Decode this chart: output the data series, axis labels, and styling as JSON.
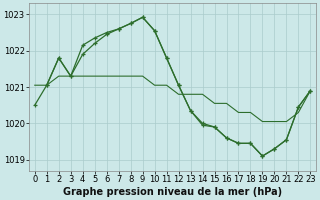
{
  "xlabel": "Graphe pression niveau de la mer (hPa)",
  "bg_color": "#cce8e8",
  "grid_color": "#aacccc",
  "line_color1": "#2d6e2d",
  "line_color2": "#2d6e2d",
  "line_color3": "#2d6e2d",
  "ylim": [
    1018.7,
    1023.3
  ],
  "xlim": [
    -0.5,
    23.5
  ],
  "yticks": [
    1019,
    1020,
    1021,
    1022,
    1023
  ],
  "xticks": [
    0,
    1,
    2,
    3,
    4,
    5,
    6,
    7,
    8,
    9,
    10,
    11,
    12,
    13,
    14,
    15,
    16,
    17,
    18,
    19,
    20,
    21,
    22,
    23
  ],
  "series1_x": [
    0,
    1,
    2,
    3,
    4,
    5,
    6,
    7,
    8,
    9,
    10,
    11,
    12,
    13,
    14,
    15,
    16,
    17,
    18,
    19,
    20,
    21,
    22,
    23
  ],
  "series1_y": [
    1020.5,
    1021.05,
    1021.8,
    1021.3,
    1021.9,
    1022.2,
    1022.45,
    1022.6,
    1022.75,
    1022.92,
    1022.55,
    1021.8,
    1021.05,
    1020.35,
    1020.0,
    1019.9,
    1019.6,
    1019.45,
    1019.45,
    1019.1,
    1019.3,
    1019.55,
    1020.45,
    1020.9
  ],
  "series2_x": [
    1,
    2,
    3,
    4,
    5,
    6,
    7,
    8,
    9,
    10,
    11,
    12,
    13,
    14,
    15,
    16,
    17,
    18,
    19,
    20,
    21,
    22,
    23
  ],
  "series2_y": [
    1021.05,
    1021.8,
    1021.3,
    1022.15,
    1022.35,
    1022.5,
    1022.6,
    1022.75,
    1022.92,
    1022.55,
    1021.8,
    1021.05,
    1020.35,
    1019.95,
    1019.9,
    1019.6,
    1019.45,
    1019.45,
    1019.1,
    1019.3,
    1019.55,
    1020.45,
    1020.9
  ],
  "series3_x": [
    0,
    1,
    2,
    3,
    4,
    5,
    6,
    7,
    8,
    9,
    10,
    11,
    12,
    13,
    14,
    15,
    16,
    17,
    18,
    19,
    20,
    21,
    22,
    23
  ],
  "series3_y": [
    1021.05,
    1021.05,
    1021.3,
    1021.3,
    1021.3,
    1021.3,
    1021.3,
    1021.3,
    1021.3,
    1021.3,
    1021.05,
    1021.05,
    1020.8,
    1020.8,
    1020.8,
    1020.55,
    1020.55,
    1020.3,
    1020.3,
    1020.05,
    1020.05,
    1020.05,
    1020.3,
    1020.9
  ],
  "tick_fontsize": 6,
  "xlabel_fontsize": 7
}
